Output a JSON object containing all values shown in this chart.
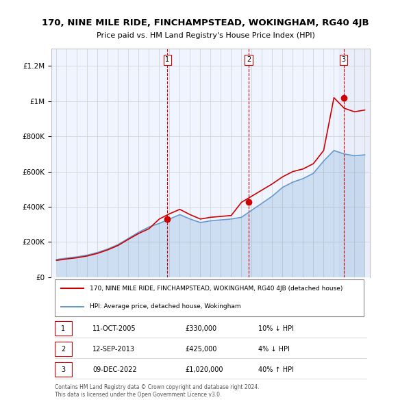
{
  "title": "170, NINE MILE RIDE, FINCHAMPSTEAD, WOKINGHAM, RG40 4JB",
  "subtitle": "Price paid vs. HM Land Registry's House Price Index (HPI)",
  "legend_property": "170, NINE MILE RIDE, FINCHAMPSTEAD, WOKINGHAM, RG40 4JB (detached house)",
  "legend_hpi": "HPI: Average price, detached house, Wokingham",
  "footer1": "Contains HM Land Registry data © Crown copyright and database right 2024.",
  "footer2": "This data is licensed under the Open Government Licence v3.0.",
  "ylim": [
    0,
    1300000
  ],
  "yticks": [
    0,
    200000,
    400000,
    600000,
    800000,
    1000000,
    1200000
  ],
  "ytick_labels": [
    "£0",
    "£200K",
    "£400K",
    "£600K",
    "£800K",
    "£1M",
    "£1.2M"
  ],
  "x_start_year": 1995,
  "x_end_year": 2025,
  "sales": [
    {
      "num": 1,
      "year": 2005.78,
      "price": 330000,
      "date": "11-OCT-2005",
      "pct": "10%",
      "dir": "↓"
    },
    {
      "num": 2,
      "year": 2013.7,
      "price": 425000,
      "date": "12-SEP-2013",
      "pct": "4%",
      "dir": "↓"
    },
    {
      "num": 3,
      "year": 2022.94,
      "price": 1020000,
      "date": "09-DEC-2022",
      "pct": "40%",
      "dir": "↑"
    }
  ],
  "property_color": "#cc0000",
  "hpi_color": "#6699cc",
  "hpi_fill_color": "#ddeeff",
  "dashed_color": "#cc0000",
  "background_color": "#ffffff",
  "plot_bg_color": "#f0f4ff",
  "grid_color": "#cccccc",
  "sale_marker_color": "#cc0000",
  "hpi_years": [
    1995,
    1996,
    1997,
    1998,
    1999,
    2000,
    2001,
    2002,
    2003,
    2004,
    2005,
    2006,
    2007,
    2008,
    2009,
    2010,
    2011,
    2012,
    2013,
    2014,
    2015,
    2016,
    2017,
    2018,
    2019,
    2020,
    2021,
    2022,
    2023,
    2024,
    2025
  ],
  "hpi_values": [
    100000,
    108000,
    115000,
    125000,
    140000,
    160000,
    185000,
    220000,
    255000,
    285000,
    305000,
    330000,
    355000,
    330000,
    310000,
    320000,
    325000,
    330000,
    340000,
    380000,
    420000,
    460000,
    510000,
    540000,
    560000,
    590000,
    660000,
    720000,
    700000,
    690000,
    695000
  ],
  "prop_years": [
    1995,
    1996,
    1997,
    1998,
    1999,
    2000,
    2001,
    2002,
    2003,
    2004,
    2005,
    2006,
    2007,
    2008,
    2009,
    2010,
    2011,
    2012,
    2013,
    2014,
    2015,
    2016,
    2017,
    2018,
    2019,
    2020,
    2021,
    2022,
    2023,
    2024,
    2025
  ],
  "prop_values": [
    95000,
    103000,
    110000,
    120000,
    135000,
    155000,
    180000,
    215000,
    248000,
    275000,
    330000,
    360000,
    385000,
    355000,
    330000,
    340000,
    345000,
    350000,
    425000,
    460000,
    495000,
    530000,
    570000,
    600000,
    615000,
    645000,
    720000,
    1020000,
    960000,
    940000,
    950000
  ]
}
